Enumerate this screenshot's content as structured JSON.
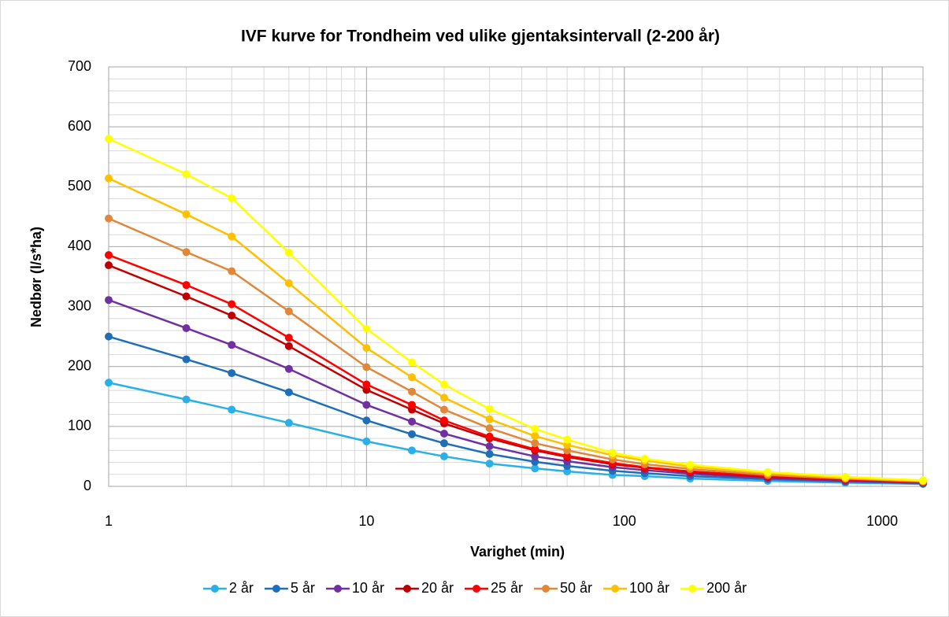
{
  "chart_data": {
    "type": "line",
    "title": "IVF kurve for Trondheim ved ulike gjentaksintervall (2-200 år)",
    "xlabel": "Varighet (min)",
    "ylabel": "Nedbør (l/s*ha)",
    "xscale": "log",
    "grid": true,
    "legend": "bottom",
    "x": [
      1,
      2,
      3,
      5,
      10,
      15,
      20,
      30,
      45,
      60,
      90,
      120,
      180,
      360,
      720,
      1440
    ],
    "xlim": [
      1,
      1440
    ],
    "xticks": [
      1,
      10,
      100,
      1000
    ],
    "ylim": [
      0,
      700
    ],
    "yticks": [
      0,
      100,
      200,
      300,
      400,
      500,
      600,
      700
    ],
    "series": [
      {
        "name": "2 år",
        "color": "#2ab0e8",
        "values": [
          173,
          145,
          128,
          106,
          75,
          60,
          50,
          38,
          30,
          25,
          19,
          17,
          13,
          9,
          6,
          4
        ]
      },
      {
        "name": "5 år",
        "color": "#1f6fb8",
        "values": [
          250,
          212,
          189,
          157,
          110,
          87,
          72,
          54,
          41,
          34,
          26,
          22,
          17,
          12,
          8,
          5
        ]
      },
      {
        "name": "10 år",
        "color": "#7030a0",
        "values": [
          311,
          264,
          236,
          196,
          136,
          108,
          88,
          67,
          50,
          42,
          32,
          27,
          21,
          14,
          9,
          6
        ]
      },
      {
        "name": "20 år",
        "color": "#c00000",
        "values": [
          369,
          317,
          285,
          234,
          161,
          128,
          105,
          80,
          60,
          49,
          37,
          31,
          24,
          16,
          11,
          7
        ]
      },
      {
        "name": "25 år",
        "color": "#ff0000",
        "values": [
          386,
          336,
          304,
          248,
          170,
          136,
          110,
          83,
          62,
          51,
          39,
          32,
          25,
          17,
          11,
          7
        ]
      },
      {
        "name": "50 år",
        "color": "#e0873a",
        "values": [
          447,
          391,
          359,
          292,
          199,
          158,
          128,
          97,
          72,
          60,
          45,
          37,
          29,
          19,
          13,
          8
        ]
      },
      {
        "name": "100 år",
        "color": "#ffc000",
        "values": [
          514,
          454,
          417,
          339,
          231,
          182,
          148,
          112,
          84,
          69,
          52,
          43,
          33,
          22,
          14,
          9
        ]
      },
      {
        "name": "200 år",
        "color": "#ffff00",
        "values": [
          580,
          521,
          481,
          390,
          263,
          207,
          170,
          129,
          96,
          78,
          56,
          46,
          36,
          24,
          16,
          10
        ]
      }
    ]
  }
}
